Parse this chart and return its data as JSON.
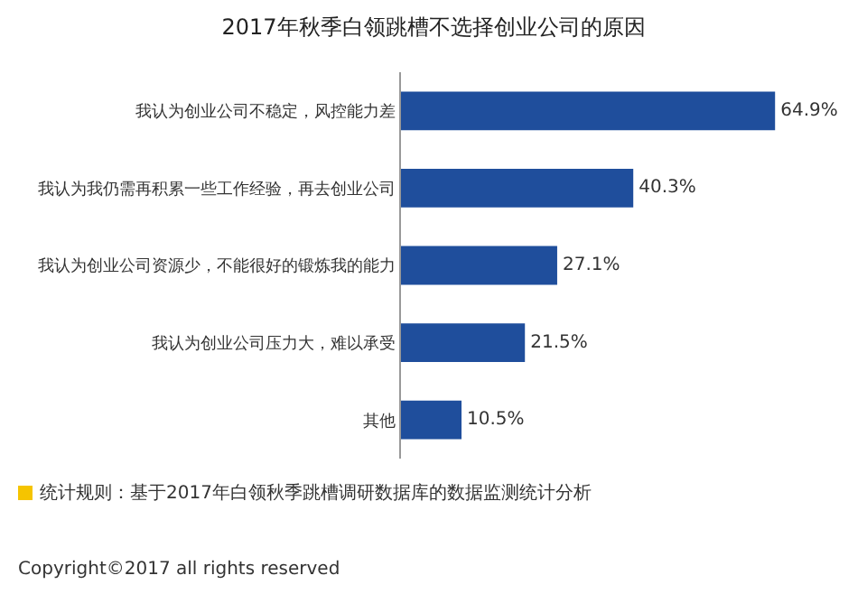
{
  "chart_data": {
    "type": "bar",
    "orientation": "horizontal",
    "title": "2017年秋季白领跳槽不选择创业公司的原因",
    "categories": [
      "我认为创业公司不稳定，风控能力差",
      "我认为我仍需再积累一些工作经验，再去创业公司",
      "我认为创业公司资源少，不能很好的锻炼我的能力",
      "我认为创业公司压力大，难以承受",
      "其他"
    ],
    "values": [
      64.9,
      40.3,
      27.1,
      21.5,
      10.5
    ],
    "value_labels": [
      "64.9%",
      "40.3%",
      "27.1%",
      "21.5%",
      "10.5%"
    ],
    "color": "#1f4e9c",
    "annotations": [
      "统计规则：基于2017年白领秋季跳槽调研数据库的数据监测统计分析",
      "Copyright©2017 all rights reserved"
    ]
  }
}
